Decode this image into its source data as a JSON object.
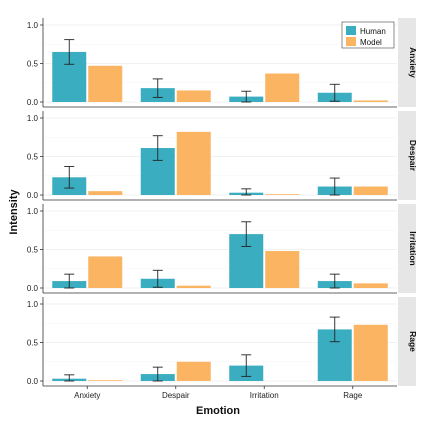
{
  "chart_data": {
    "type": "bar",
    "xlabel": "Emotion",
    "ylabel": "Intensity",
    "categories": [
      "Anxiety",
      "Despair",
      "Irritation",
      "Rage"
    ],
    "yticks": [
      "0.0",
      "0.5",
      "1.0"
    ],
    "ylim": [
      0,
      1.05
    ],
    "grid": true,
    "legend_position": "top-right",
    "series": [
      {
        "name": "Human",
        "color": "#3aadc0"
      },
      {
        "name": "Model",
        "color": "#fbb461"
      }
    ],
    "panels": [
      {
        "label": "Anxiety",
        "Human": [
          0.65,
          0.18,
          0.07,
          0.12
        ],
        "Human_error": [
          0.16,
          0.12,
          0.07,
          0.11
        ],
        "Model": [
          0.47,
          0.15,
          0.37,
          0.02
        ]
      },
      {
        "label": "Despair",
        "Human": [
          0.23,
          0.61,
          0.03,
          0.11
        ],
        "Human_error": [
          0.14,
          0.16,
          0.05,
          0.11
        ],
        "Model": [
          0.05,
          0.82,
          0.01,
          0.11
        ]
      },
      {
        "label": "Irritation",
        "Human": [
          0.09,
          0.12,
          0.7,
          0.09
        ],
        "Human_error": [
          0.09,
          0.11,
          0.16,
          0.09
        ],
        "Model": [
          0.41,
          0.03,
          0.48,
          0.06
        ]
      },
      {
        "label": "Rage",
        "Human": [
          0.03,
          0.09,
          0.2,
          0.67
        ],
        "Human_error": [
          0.05,
          0.09,
          0.14,
          0.16
        ],
        "Model": [
          0.01,
          0.25,
          0.0,
          0.73
        ]
      }
    ]
  }
}
